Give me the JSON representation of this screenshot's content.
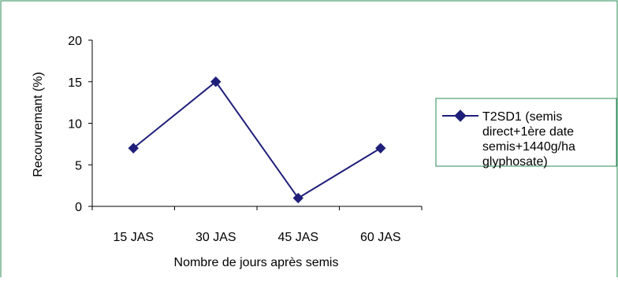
{
  "chart_data": {
    "type": "line",
    "categories": [
      "15 JAS",
      "30 JAS",
      "45 JAS",
      "60 JAS"
    ],
    "series": [
      {
        "name": "T2SD1 (semis direct+1ère date semis+1440g/ha glyphosate)",
        "legend_lines": [
          "T2SD1 (semis",
          "direct+1ère date",
          "semis+1440g/ha",
          "glyphosate)"
        ],
        "values": [
          7,
          15,
          1,
          7
        ],
        "color": "#1f1f7a",
        "marker": "diamond"
      }
    ],
    "xlabel": "Nombre de jours après semis",
    "ylabel": "Recouvremant (%)",
    "ylim": [
      0,
      20
    ],
    "yticks": [
      0,
      5,
      10,
      15,
      20
    ],
    "grid": false,
    "legend_position": "right",
    "frame_color": "#2e8b57"
  }
}
